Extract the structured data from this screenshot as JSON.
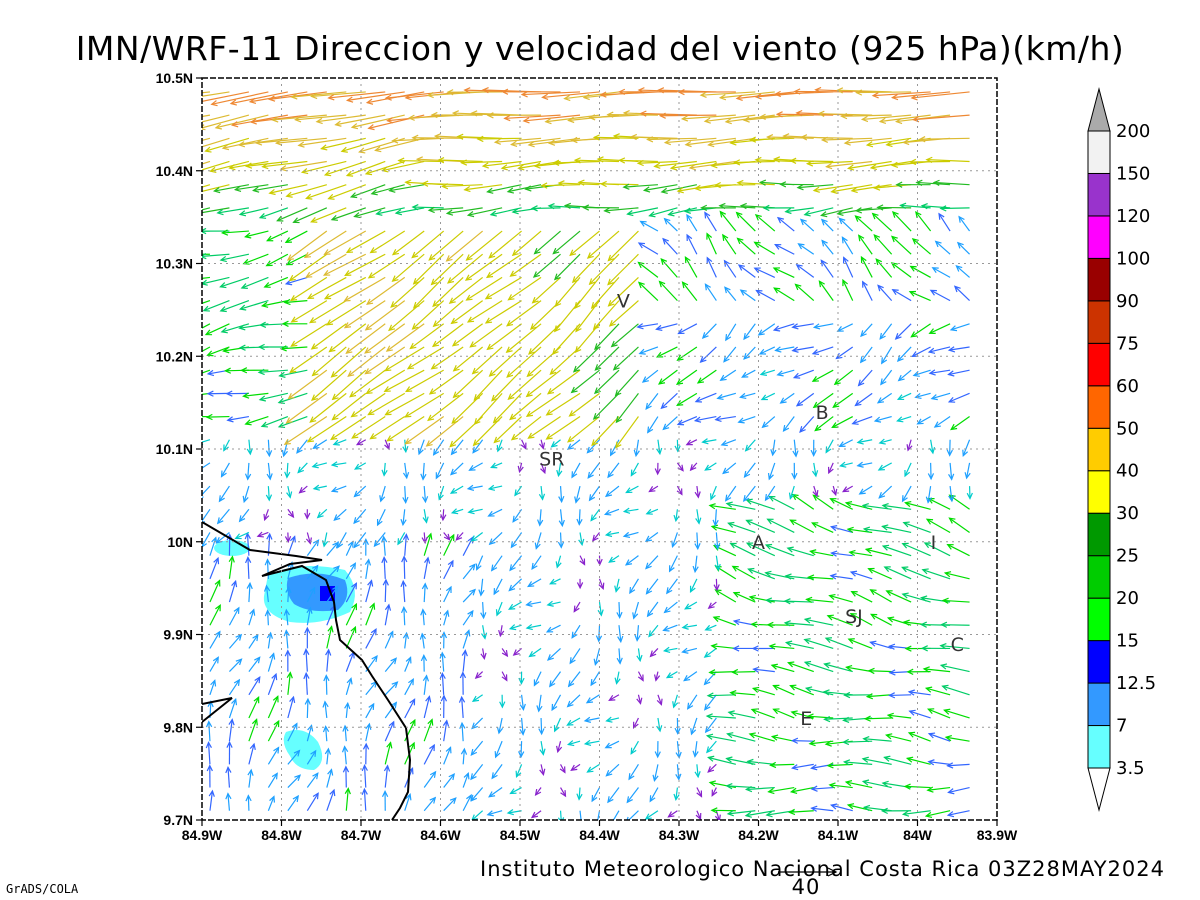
{
  "title": "IMN/WRF-11 Direccion y velocidad del viento (925 hPa)(km/h)",
  "footer": "Instituto Meteorologico Nacional Costa Rica 03Z28MAY2024",
  "software_credit": "GrADS/COLA",
  "vector_legend": {
    "label": "40",
    "value": 40
  },
  "map": {
    "lat_range": [
      9.7,
      10.5
    ],
    "lon_range": [
      -84.9,
      -83.9
    ],
    "lat_ticks": [
      "9.7N",
      "9.8N",
      "9.9N",
      "10N",
      "10.1N",
      "10.2N",
      "10.3N",
      "10.4N",
      "10.5N"
    ],
    "lat_values": [
      9.7,
      9.8,
      9.9,
      10.0,
      10.1,
      10.2,
      10.3,
      10.4,
      10.5
    ],
    "lon_ticks": [
      "84.9W",
      "84.8W",
      "84.7W",
      "84.6W",
      "84.5W",
      "84.4W",
      "84.3W",
      "84.2W",
      "84.1W",
      "84W",
      "83.9W"
    ],
    "lon_values": [
      -84.9,
      -84.8,
      -84.7,
      -84.6,
      -84.5,
      -84.4,
      -84.3,
      -84.2,
      -84.1,
      -84.0,
      -83.9
    ],
    "grid": "dotted"
  },
  "places": [
    {
      "label": "V",
      "lon": -84.37,
      "lat": 10.26
    },
    {
      "label": "B",
      "lon": -84.12,
      "lat": 10.14
    },
    {
      "label": "SR",
      "lon": -84.46,
      "lat": 10.09
    },
    {
      "label": "A",
      "lon": -84.2,
      "lat": 10.0
    },
    {
      "label": "I",
      "lon": -83.98,
      "lat": 10.0
    },
    {
      "label": "SJ",
      "lon": -84.08,
      "lat": 9.92
    },
    {
      "label": "C",
      "lon": -83.95,
      "lat": 9.89
    },
    {
      "label": "E",
      "lon": -84.14,
      "lat": 9.81
    }
  ],
  "colorbar": {
    "levels": [
      "3.5",
      "7",
      "12.5",
      "15",
      "20",
      "25",
      "30",
      "40",
      "50",
      "60",
      "75",
      "90",
      "100",
      "120",
      "150",
      "200"
    ],
    "colors": [
      "#ffffff",
      "#66ffff",
      "#3399ff",
      "#0000ff",
      "#00ff00",
      "#00cc00",
      "#009900",
      "#ffff00",
      "#ffcc00",
      "#ff6600",
      "#ff0000",
      "#cc3300",
      "#990000",
      "#ff00ff",
      "#9933cc",
      "#f2f2f2",
      "#aaaaaa"
    ]
  },
  "shading": [
    {
      "level": "3.5",
      "color": "#66ffff",
      "areas": [
        "Nicoya coast patch near 9.95N 84.76W",
        "patch near 9.78N 84.79W",
        "patch near 10.0N 84.88W"
      ]
    },
    {
      "level": "7",
      "color": "#3399ff",
      "areas": [
        "near 9.95N 84.75W"
      ]
    },
    {
      "level": "12.5",
      "color": "#0000ff",
      "areas": [
        "near 9.94N 84.74W"
      ]
    }
  ],
  "wind_field": {
    "units": "km/h",
    "description_regions": [
      {
        "region": "north band 10.35N-10.5N",
        "direction": "from east",
        "speed_range": [
          15,
          60
        ]
      },
      {
        "region": "northwest convergence",
        "direction": "from northeast",
        "speed_range": [
          25,
          55
        ]
      },
      {
        "region": "central valley",
        "direction": "weak variable",
        "speed_range": [
          3,
          12
        ]
      },
      {
        "region": "southeast",
        "direction": "from east",
        "speed_range": [
          10,
          40
        ]
      },
      {
        "region": "southwest",
        "direction": "from south",
        "speed_range": [
          7,
          15
        ]
      }
    ]
  }
}
